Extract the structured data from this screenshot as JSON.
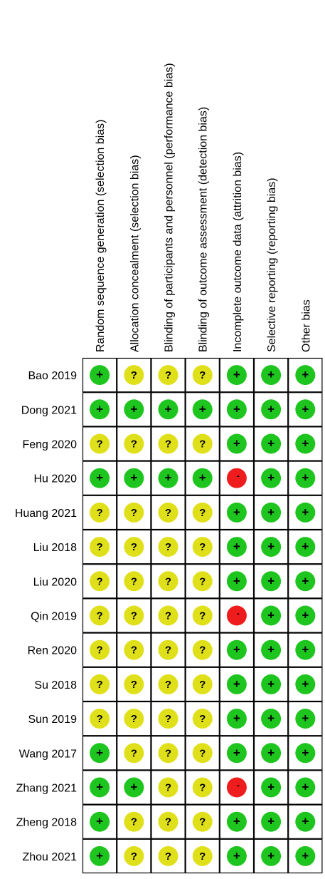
{
  "chart_data": {
    "type": "table",
    "domains": [
      "Random sequence generation (selection bias)",
      "Allocation concealment (selection bias)",
      "Blinding of participants and personnel (performance bias)",
      "Blinding of outcome assessment (detection bias)",
      "Incomplete outcome data (attrition bias)",
      "Selective reporting (reporting bias)",
      "Other bias"
    ],
    "studies": [
      "Bao 2019",
      "Dong 2021",
      "Feng 2020",
      "Hu 2020",
      "Huang 2021",
      "Liu 2018",
      "Liu 2020",
      "Qin 2019",
      "Ren 2020",
      "Su 2018",
      "Sun 2019",
      "Wang 2017",
      "Zhang 2021",
      "Zheng 2018",
      "Zhou 2021"
    ],
    "judgements": [
      [
        "+",
        "?",
        "?",
        "?",
        "+",
        "+",
        "+"
      ],
      [
        "+",
        "+",
        "+",
        "+",
        "+",
        "+",
        "+"
      ],
      [
        "?",
        "?",
        "?",
        "?",
        "+",
        "+",
        "+"
      ],
      [
        "+",
        "+",
        "+",
        "+",
        "-",
        "+",
        "+"
      ],
      [
        "?",
        "?",
        "?",
        "?",
        "+",
        "+",
        "+"
      ],
      [
        "?",
        "?",
        "?",
        "?",
        "+",
        "+",
        "+"
      ],
      [
        "?",
        "?",
        "?",
        "?",
        "+",
        "+",
        "+"
      ],
      [
        "?",
        "?",
        "?",
        "?",
        "-",
        "+",
        "+"
      ],
      [
        "?",
        "?",
        "?",
        "?",
        "+",
        "+",
        "+"
      ],
      [
        "?",
        "?",
        "?",
        "?",
        "+",
        "+",
        "+"
      ],
      [
        "?",
        "?",
        "?",
        "?",
        "+",
        "+",
        "+"
      ],
      [
        "+",
        "?",
        "?",
        "?",
        "+",
        "+",
        "+"
      ],
      [
        "+",
        "+",
        "?",
        "?",
        "-",
        "+",
        "+"
      ],
      [
        "+",
        "?",
        "?",
        "?",
        "+",
        "+",
        "+"
      ],
      [
        "+",
        "?",
        "?",
        "?",
        "+",
        "+",
        "+"
      ]
    ],
    "legend": {
      "+": {
        "color": "#1ec51e"
      },
      "?": {
        "color": "#e0e01a"
      },
      "-": {
        "color": "#ee1c1c"
      }
    }
  }
}
